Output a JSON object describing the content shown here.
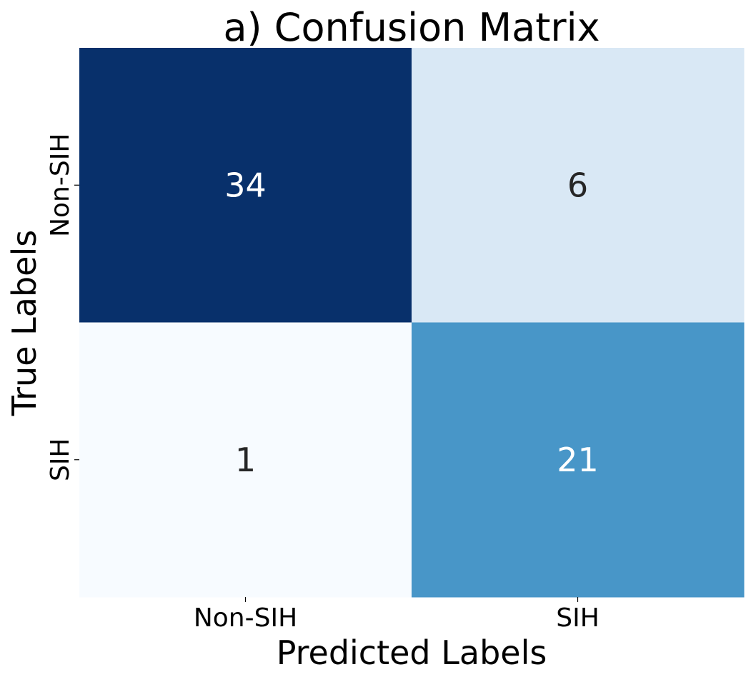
{
  "chart_data": {
    "type": "heatmap",
    "title": "a) Confusion Matrix",
    "xlabel": "Predicted Labels",
    "ylabel": "True Labels",
    "x_categories": [
      "Non-SIH",
      "SIH"
    ],
    "y_categories": [
      "Non-SIH",
      "SIH"
    ],
    "values": [
      [
        34,
        6
      ],
      [
        1,
        21
      ]
    ],
    "colormap": "Blues",
    "color_range": [
      1,
      34
    ],
    "colorbar": false,
    "grid": false,
    "colors": {
      "scale": [
        "#f7fbff",
        "#deebf7",
        "#c6dbef",
        "#9ecae1",
        "#6baed6",
        "#4292c6",
        "#2171b5",
        "#08519c",
        "#08306b"
      ],
      "text_dark": "#262626",
      "text_light": "#ffffff"
    }
  }
}
